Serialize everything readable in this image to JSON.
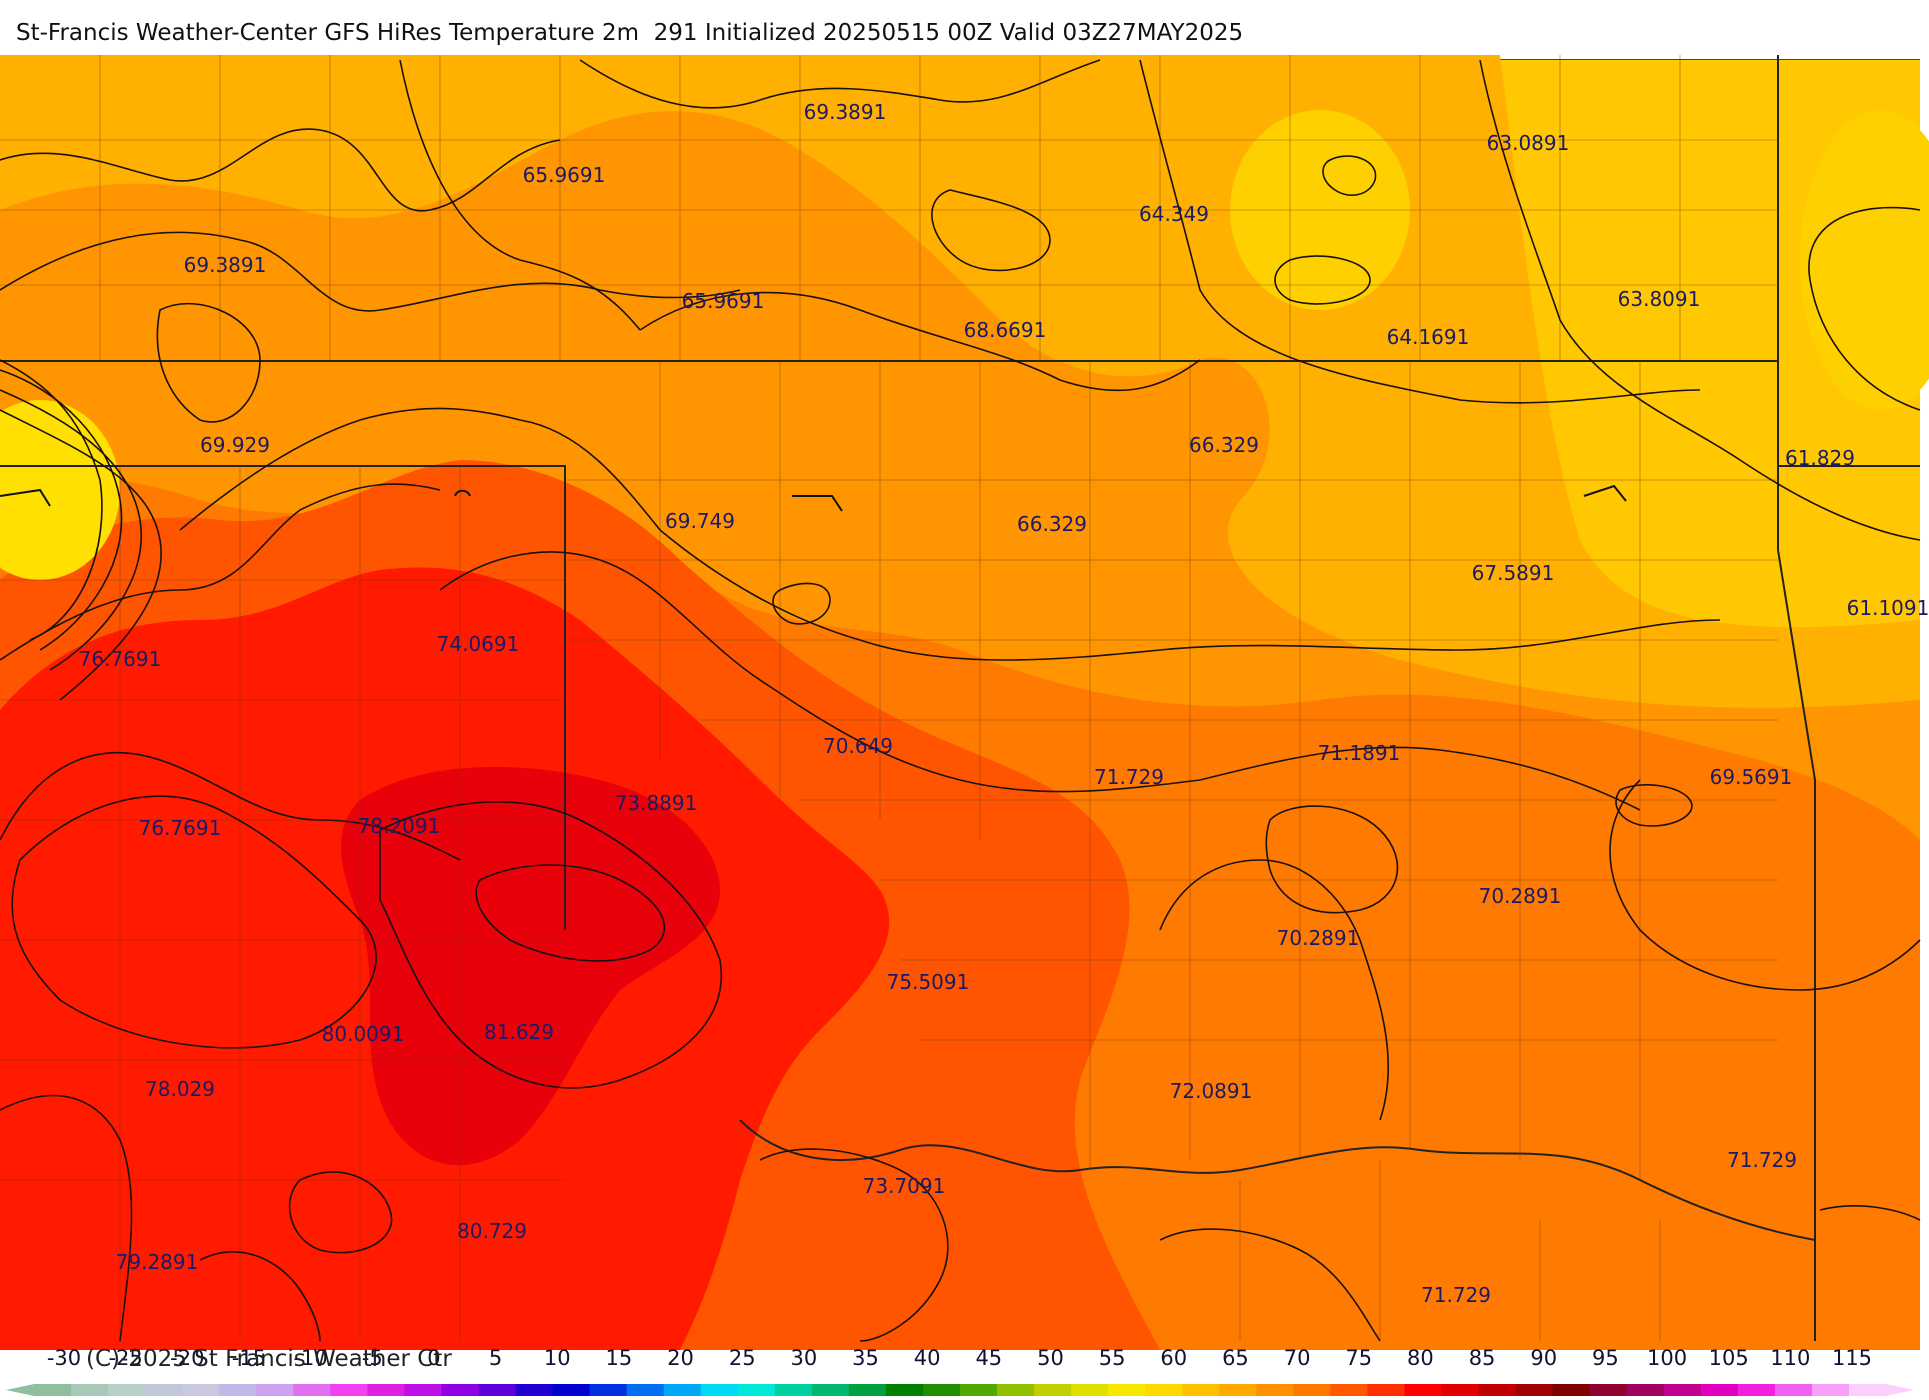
{
  "header": {
    "title": "St-Francis Weather-Center GFS HiRes Temperature 2m  291 Initialized 20250515 00Z Valid 03Z27MAY2025"
  },
  "map": {
    "value_labels": [
      "69.3891",
      "65.9691",
      "69.3891",
      "65.9691",
      "64.349",
      "68.6691",
      "63.0891",
      "64.1691",
      "63.8091",
      "69.929",
      "66.329",
      "61.829",
      "69.749",
      "66.329",
      "67.5891",
      "61.1091",
      "76.7691",
      "74.0691",
      "70.649",
      "71.729",
      "71.1891",
      "69.5691",
      "76.7691",
      "78.2091",
      "73.8891",
      "70.2891",
      "70.2891",
      "75.5091",
      "80.0091",
      "81.629",
      "72.0891",
      "78.029",
      "73.7091",
      "71.729",
      "80.729",
      "79.2891",
      "71.729"
    ],
    "palette": {
      "yellow": "#FFE000",
      "gold": "#FFC800",
      "amber": "#FFB000",
      "orange": "#FF9500",
      "dark_orange": "#FF7A00",
      "orange_red": "#FF5500",
      "red": "#FF1A00",
      "deep_red": "#E8000A"
    }
  },
  "colorbar": {
    "ticks": [
      "-30",
      "-25",
      "-20",
      "-15",
      "-10",
      "-5",
      "0",
      "5",
      "10",
      "15",
      "20",
      "25",
      "30",
      "35",
      "40",
      "45",
      "50",
      "55",
      "60",
      "65",
      "70",
      "75",
      "80",
      "85",
      "90",
      "95",
      "100",
      "105",
      "110",
      "115"
    ],
    "colors": [
      "#8fbf9f",
      "#a8c8b8",
      "#b8d0c8",
      "#c0c8d8",
      "#c8c8e0",
      "#c0b8e8",
      "#d0a0f0",
      "#e070f0",
      "#f040f0",
      "#e020e0",
      "#c010e8",
      "#9000e0",
      "#6000d8",
      "#2000d0",
      "#0000d0",
      "#0030e0",
      "#0070f0",
      "#00a8f8",
      "#00d8f8",
      "#00e8d8",
      "#00d0a0",
      "#00b870",
      "#00a040",
      "#008000",
      "#209000",
      "#50a800",
      "#90c000",
      "#c0d000",
      "#e0e000",
      "#f8e800",
      "#ffd800",
      "#ffc000",
      "#ffa800",
      "#ff9000",
      "#ff7800",
      "#ff5800",
      "#ff3000",
      "#ff0000",
      "#e00000",
      "#c00000",
      "#a00000",
      "#800000",
      "#900030",
      "#a00060",
      "#c00090",
      "#e000c0",
      "#f020e0",
      "#f060f0",
      "#f8a0f8",
      "#fcd0fc"
    ],
    "copyright": "(C)-2025 St Francis Weather Ctr"
  }
}
